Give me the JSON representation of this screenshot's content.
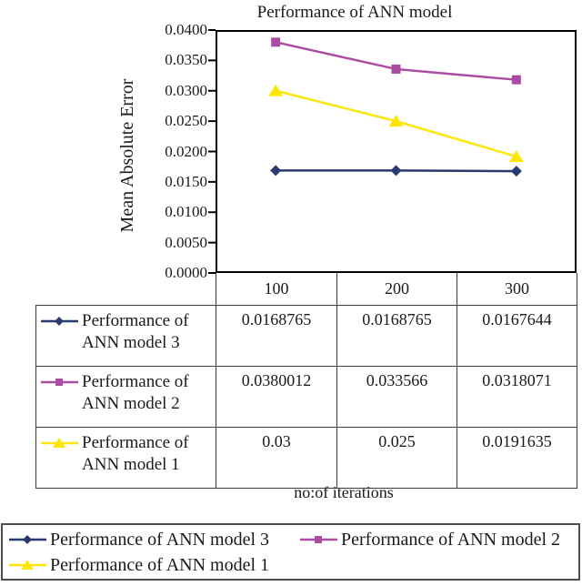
{
  "chart_data": {
    "type": "line",
    "title": "Performance of ANN model",
    "ylabel": "Mean Absolute Error",
    "xlabel": "no:of iterations",
    "categories": [
      "100",
      "200",
      "300"
    ],
    "ylim": [
      0,
      0.04
    ],
    "ytick_step": 0.005,
    "ytick_labels": [
      "0.0400",
      "0.0350",
      "0.0300",
      "0.0250",
      "0.0200",
      "0.0150",
      "0.0100",
      "0.0050",
      "0.0000"
    ],
    "grid": false,
    "legend_position": "bottom",
    "frame_color": "#000000",
    "series": [
      {
        "name": "Performance of ANN model 3",
        "values": [
          0.0168765,
          0.0168765,
          0.0167644
        ],
        "display": [
          "0.0168765",
          "0.0168765",
          "0.0167644"
        ],
        "color": "#2B3A6E",
        "marker": "diamond"
      },
      {
        "name": "Performance of ANN model 2",
        "values": [
          0.0380012,
          0.033566,
          0.0318071
        ],
        "display": [
          "0.0380012",
          "0.033566",
          "0.0318071"
        ],
        "color": "#AB4BA3",
        "marker": "square"
      },
      {
        "name": "Performance of ANN model 1",
        "values": [
          0.03,
          0.025,
          0.0191635
        ],
        "display": [
          "0.03",
          "0.025",
          "0.0191635"
        ],
        "color": "#FFE60A",
        "marker": "triangle"
      }
    ]
  }
}
